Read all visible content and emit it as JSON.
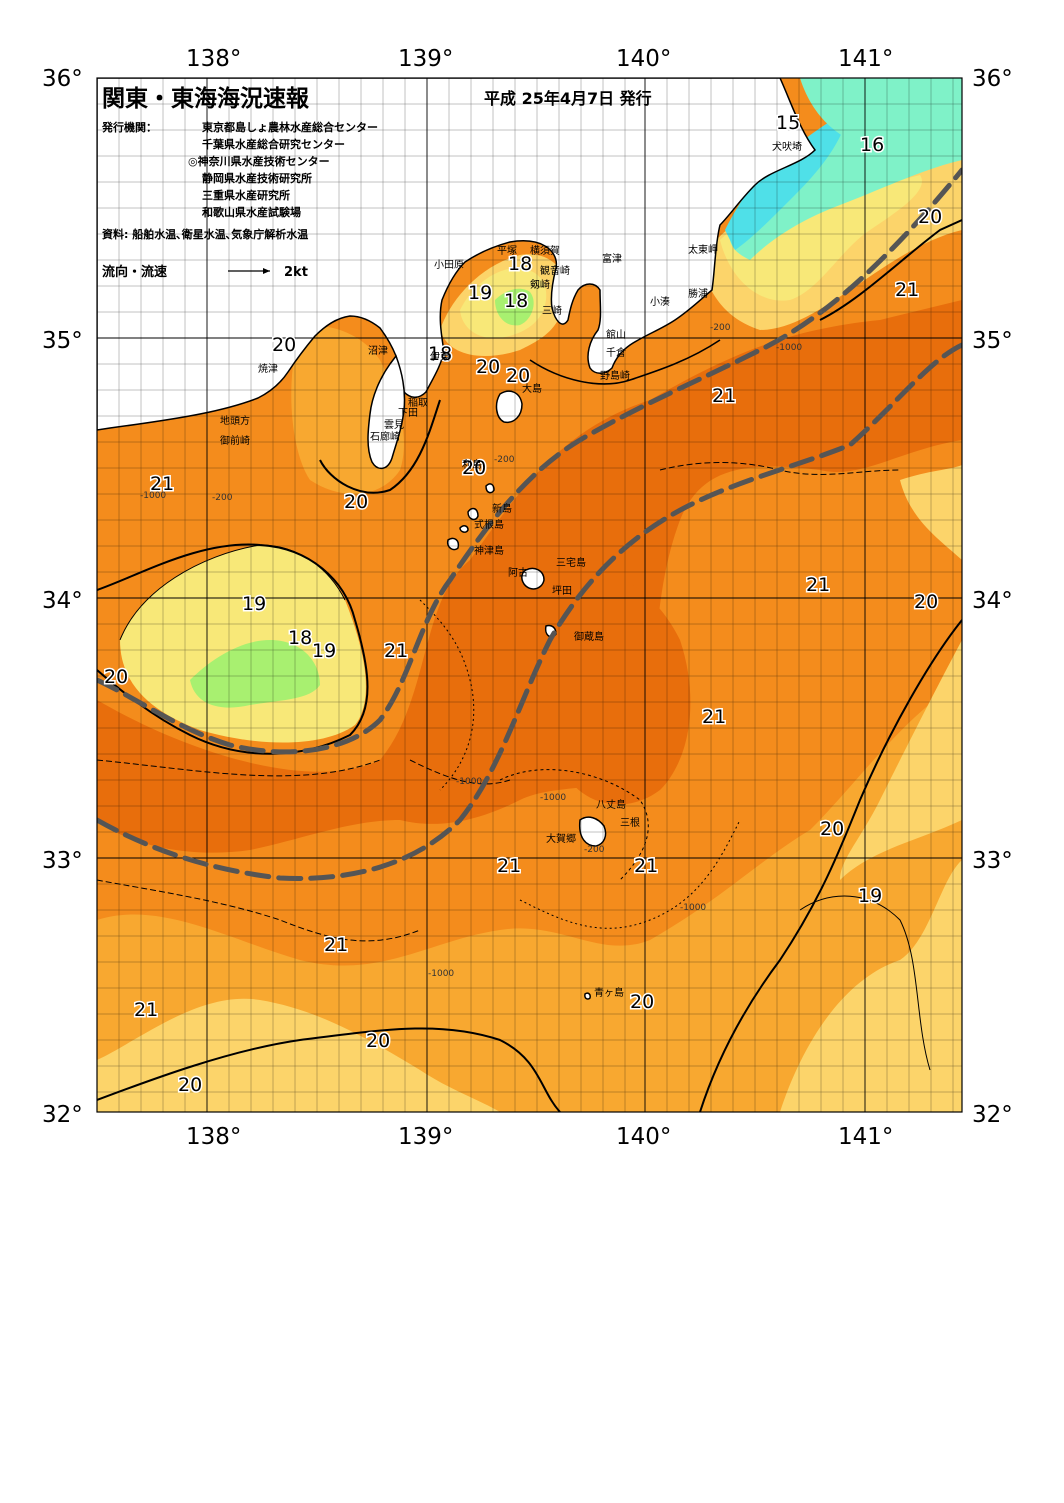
{
  "header": {
    "title": "関東・東海海況速報",
    "date": "平成 25年4月7日 発行",
    "publisher_label": "発行機関：",
    "publishers": [
      "東京都島しょ農林水産総合センター",
      "千葉県水産総合研究センター",
      "◎神奈川県水産技術センター",
      "静岡県水産技術研究所",
      "三重県水産研究所",
      "和歌山県水産試験場"
    ],
    "source": "資料: 船舶水温､衛星水温､気象庁解析水温",
    "legend_label": "流向・流速",
    "legend_speed": "2kt"
  },
  "axes": {
    "lon_ticks": [
      "138°",
      "139°",
      "140°",
      "141°"
    ],
    "lat_ticks": [
      "36°",
      "35°",
      "34°",
      "33°",
      "32°"
    ]
  },
  "colors": {
    "t15": "#4fe0e8",
    "t16": "#7ff2c8",
    "t18": "#a8f070",
    "t19": "#f8e878",
    "t20a": "#fcd46a",
    "t20b": "#f8a830",
    "t21a": "#f48c1c",
    "t21b": "#e86e0c",
    "land": "#ffffff",
    "kuroshio": "#555555"
  },
  "isotherm_labels": [
    {
      "text": "15"
    },
    {
      "text": "16"
    },
    {
      "text": "20"
    },
    {
      "text": "21"
    },
    {
      "text": "18"
    },
    {
      "text": "19"
    },
    {
      "text": "18"
    },
    {
      "text": "20"
    },
    {
      "text": "18"
    },
    {
      "text": "20"
    },
    {
      "text": "20"
    },
    {
      "text": "21"
    },
    {
      "text": "21"
    },
    {
      "text": "20"
    },
    {
      "text": "20"
    },
    {
      "text": "19"
    },
    {
      "text": "18"
    },
    {
      "text": "19"
    },
    {
      "text": "21"
    },
    {
      "text": "20"
    },
    {
      "text": "21"
    },
    {
      "text": "20"
    },
    {
      "text": "21"
    },
    {
      "text": "20"
    },
    {
      "text": "21"
    },
    {
      "text": "21"
    },
    {
      "text": "19"
    },
    {
      "text": "21"
    },
    {
      "text": "21"
    },
    {
      "text": "20"
    },
    {
      "text": "20"
    },
    {
      "text": "20"
    }
  ],
  "places": [
    "犬吠埼",
    "太東岬",
    "勝浦",
    "小湊",
    "館山",
    "千倉",
    "野島崎",
    "富津",
    "横須賀",
    "観音崎",
    "剱崎",
    "三崎",
    "平塚",
    "小田原",
    "伊東",
    "稲取",
    "下田",
    "雲見",
    "石廊崎",
    "沼津",
    "焼津",
    "地頭方",
    "御前崎",
    "大島",
    "利島",
    "新島",
    "式根島",
    "神津島",
    "三宅島",
    "阿古",
    "坪田",
    "御蔵島",
    "八丈島",
    "三根",
    "大賀郷",
    "青ヶ島"
  ],
  "depth_labels": [
    "-200",
    "-1000"
  ]
}
